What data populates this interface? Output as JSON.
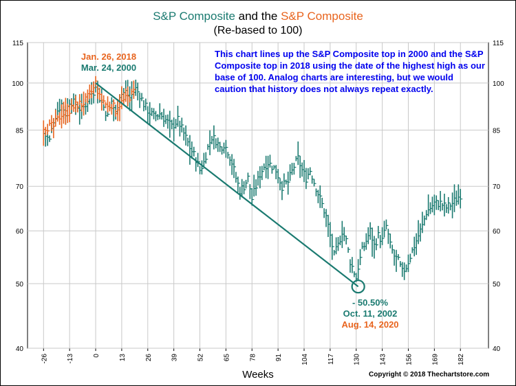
{
  "title": {
    "part1": "S&P Composite",
    "part2": " and the ",
    "part3": "S&P Composite"
  },
  "subtitle": "(Re-based to 100)",
  "note": "This chart lines up the S&P Composite top in 2000 and the S&P Composite top in 2018 using the date of the highest high as our base of 100.  Analog charts are interesting, but we would caution that history does not always repeat exactly.",
  "annotations": {
    "top_2018": "Jan. 26, 2018",
    "top_2000": "Mar. 24, 2000",
    "decline": "- 50.50%",
    "bottom_2002": "Oct. 11, 2002",
    "equiv_2020": "Aug. 14, 2020"
  },
  "xlabel": "Weeks",
  "copyright": "Copyright © 2018 Thechartstore.com",
  "colors": {
    "series_2000": "#1a7a70",
    "series_2018": "#e8641e",
    "note_text": "#0000ee",
    "grid": "#c8c8c8"
  },
  "chart_data": {
    "type": "bar",
    "bar_style": "high-low-close",
    "title": "S&P Composite and the S&P Composite",
    "subtitle": "(Re-based to 100)",
    "xlabel": "Weeks",
    "ylabel": "",
    "y_scale": "log",
    "xlim": [
      -34,
      196
    ],
    "ylim": [
      40,
      115
    ],
    "x_ticks": [
      -26,
      -13,
      0,
      13,
      26,
      39,
      52,
      65,
      78,
      91,
      104,
      117,
      130,
      143,
      156,
      169,
      182
    ],
    "y_ticks": [
      40,
      50,
      60,
      70,
      85,
      100,
      115
    ],
    "grid": true,
    "series": [
      {
        "name": "S&P Composite",
        "label_date": "Mar. 24, 2000",
        "color": "#1a7a70",
        "anchors_x": [
          -26,
          -23,
          -21,
          -19,
          -17,
          -15,
          -13,
          -10,
          -7,
          -5,
          -3,
          -1,
          0,
          2,
          4,
          6,
          8,
          10,
          12,
          15,
          17,
          20,
          22,
          24,
          26,
          29,
          32,
          35,
          38,
          41,
          44,
          47,
          50,
          52,
          54,
          56,
          58,
          60,
          62,
          64,
          66,
          68,
          70,
          72,
          74,
          76,
          78,
          80,
          82,
          84,
          86,
          88,
          90,
          93,
          96,
          99,
          101,
          103,
          105,
          107,
          109,
          112,
          115,
          117,
          119,
          121,
          123,
          125,
          127,
          129,
          130,
          131,
          133,
          135,
          137,
          139,
          141,
          143,
          145,
          147,
          149,
          151,
          153,
          155,
          157,
          159,
          161,
          163,
          165,
          167,
          169,
          172,
          175,
          178,
          180,
          182
        ],
        "anchors_close": [
          84,
          82,
          88,
          91,
          93,
          90,
          94,
          93,
          91,
          93,
          96,
          97,
          100,
          95,
          92,
          89,
          94,
          90,
          96,
          97,
          95,
          98,
          96,
          93,
          91,
          89,
          90,
          88,
          86,
          88,
          84,
          80,
          77,
          74,
          76,
          80,
          83,
          82,
          80,
          81,
          79,
          76,
          72,
          69,
          70,
          72,
          67,
          70,
          73,
          75,
          76,
          75,
          74,
          70,
          71,
          75,
          77,
          74,
          72,
          74,
          71,
          67,
          63,
          59,
          55,
          57,
          60,
          58,
          54,
          52,
          51,
          53,
          56,
          58,
          60,
          57,
          59,
          58,
          61,
          57,
          55,
          54,
          52,
          53,
          55,
          57,
          59,
          61,
          64,
          65,
          66,
          66,
          65,
          66,
          67,
          68
        ]
      },
      {
        "name": "S&P Composite",
        "label_date": "Jan. 26, 2018",
        "color": "#e8641e",
        "anchors_x": [
          -26,
          -23,
          -21,
          -19,
          -17,
          -15,
          -13,
          -11,
          -9,
          -7,
          -5,
          -3,
          -1,
          0,
          2,
          4,
          6,
          8,
          10,
          12,
          14,
          16,
          18,
          19
        ],
        "anchors_close": [
          86,
          86,
          86,
          88,
          90,
          90,
          91,
          92,
          93,
          93,
          94,
          96,
          98,
          100,
          95,
          94,
          92,
          93,
          91,
          93,
          94,
          95,
          96,
          97
        ]
      }
    ],
    "trend_line": {
      "from": [
        0,
        100
      ],
      "to": [
        131,
        49.5
      ],
      "label": "- 50.50%"
    },
    "marker": {
      "x": 131,
      "y": 49.5,
      "shape": "circle"
    }
  }
}
